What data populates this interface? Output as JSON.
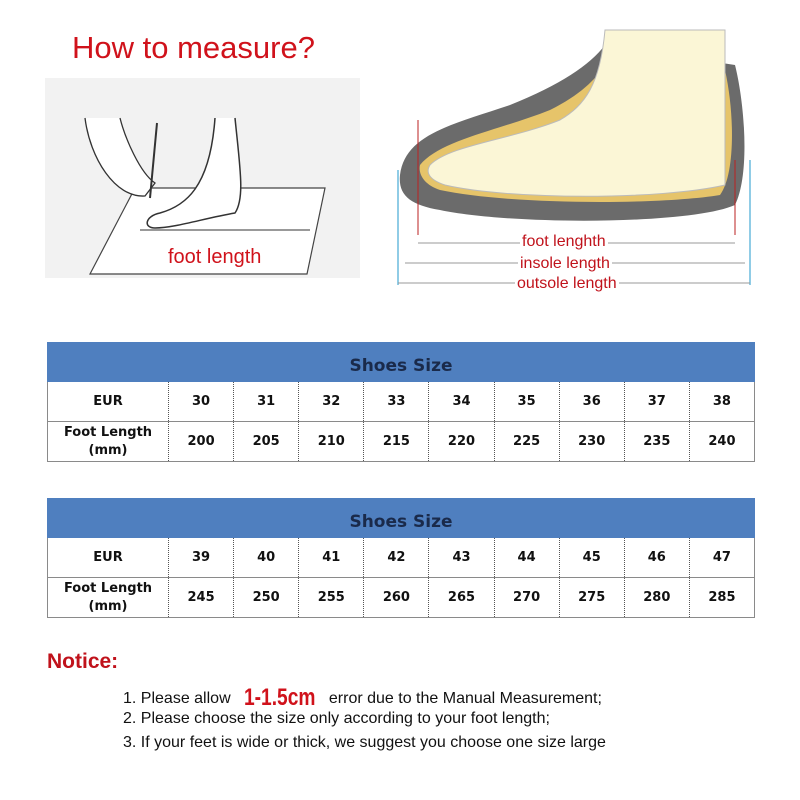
{
  "header": {
    "title": "How to measure?"
  },
  "illustration": {
    "left_label": "foot length",
    "right_labels": [
      "foot lenghth",
      "insole length",
      "outsole length"
    ]
  },
  "tables": [
    {
      "title": "Shoes Size",
      "row_labels": [
        "EUR",
        "Foot Length (mm)"
      ],
      "eur": [
        "30",
        "31",
        "32",
        "33",
        "34",
        "35",
        "36",
        "37",
        "38"
      ],
      "foot_length": [
        "200",
        "205",
        "210",
        "215",
        "220",
        "225",
        "230",
        "235",
        "240"
      ]
    },
    {
      "title": "Shoes Size",
      "row_labels": [
        "EUR",
        "Foot Length (mm)"
      ],
      "eur": [
        "39",
        "40",
        "41",
        "42",
        "43",
        "44",
        "45",
        "46",
        "47"
      ],
      "foot_length": [
        "245",
        "250",
        "255",
        "260",
        "265",
        "270",
        "275",
        "280",
        "285"
      ]
    }
  ],
  "notice": {
    "title": "Notice:",
    "item1_pre": "1. Please allow ",
    "item1_highlight": "1-1.5cm",
    "item1_post": " error due to the Manual Measurement;",
    "item2": "2. Please choose the size only according to your foot length;",
    "item3": "3. If your feet is wide or thick, we suggest you choose one size large"
  },
  "colors": {
    "header_blue": "#4f7fbf",
    "accent_red": "#d0121b"
  }
}
